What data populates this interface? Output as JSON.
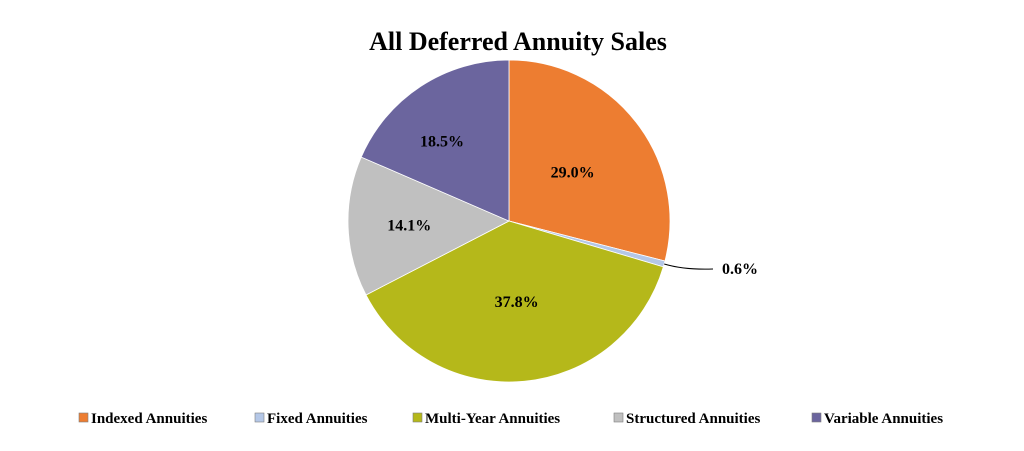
{
  "chart_data": {
    "type": "pie",
    "title": "All Deferred Annuity Sales",
    "legend_position": "bottom",
    "slices": [
      {
        "name": "Indexed Annuities",
        "value": 29.0,
        "label": "29.0%",
        "color": "#ED7D31"
      },
      {
        "name": "Fixed Annuities",
        "value": 0.6,
        "label": "0.6%",
        "color": "#B4C7E7"
      },
      {
        "name": "Multi-Year Annuities",
        "value": 37.8,
        "label": "37.8%",
        "color": "#B5B81A"
      },
      {
        "name": "Structured Annuities",
        "value": 14.1,
        "label": "14.1%",
        "color": "#C0C0C0"
      },
      {
        "name": "Variable Annuities",
        "value": 18.5,
        "label": "18.5%",
        "color": "#6B659E"
      }
    ]
  }
}
